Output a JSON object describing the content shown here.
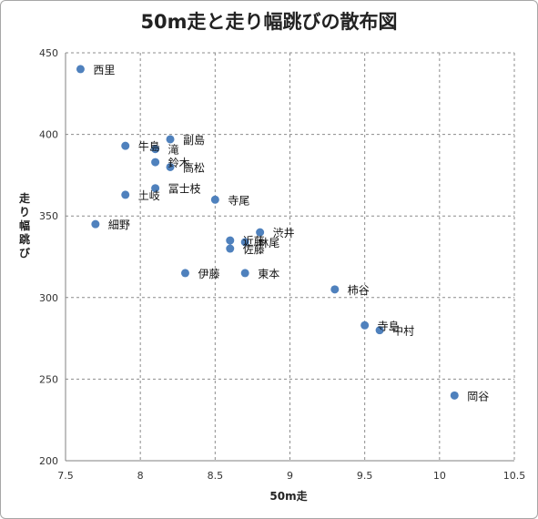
{
  "chart_data": {
    "type": "scatter",
    "title": "50m走と走り幅跳びの散布図",
    "xlabel": "50m走",
    "ylabel": "走り幅跳び",
    "xlim": [
      7.5,
      10.5
    ],
    "ylim": [
      200,
      450
    ],
    "xticks": [
      "7.5",
      "8",
      "8.5",
      "9",
      "9.5",
      "10",
      "10.5"
    ],
    "yticks": [
      "200",
      "250",
      "300",
      "350",
      "400",
      "450"
    ],
    "grid": true,
    "marker_color": "#4f81bd",
    "points": [
      {
        "name": "西里",
        "x": 7.6,
        "y": 440
      },
      {
        "name": "牛島",
        "x": 7.9,
        "y": 393
      },
      {
        "name": "土岐",
        "x": 7.9,
        "y": 363
      },
      {
        "name": "細野",
        "x": 7.7,
        "y": 345
      },
      {
        "name": "副島",
        "x": 8.2,
        "y": 397
      },
      {
        "name": "滝",
        "x": 8.1,
        "y": 391
      },
      {
        "name": "鈴木",
        "x": 8.1,
        "y": 383
      },
      {
        "name": "高松",
        "x": 8.2,
        "y": 380
      },
      {
        "name": "冨士枝",
        "x": 8.1,
        "y": 367
      },
      {
        "name": "寺尾",
        "x": 8.5,
        "y": 360
      },
      {
        "name": "渋井",
        "x": 8.8,
        "y": 340
      },
      {
        "name": "近藤",
        "x": 8.6,
        "y": 335
      },
      {
        "name": "林尾",
        "x": 8.7,
        "y": 334
      },
      {
        "name": "佐藤",
        "x": 8.6,
        "y": 330
      },
      {
        "name": "伊藤",
        "x": 8.3,
        "y": 315
      },
      {
        "name": "東本",
        "x": 8.7,
        "y": 315
      },
      {
        "name": "柿谷",
        "x": 9.3,
        "y": 305
      },
      {
        "name": "寺島",
        "x": 9.5,
        "y": 283
      },
      {
        "name": "中村",
        "x": 9.6,
        "y": 280
      },
      {
        "name": "岡谷",
        "x": 10.1,
        "y": 240
      }
    ]
  }
}
